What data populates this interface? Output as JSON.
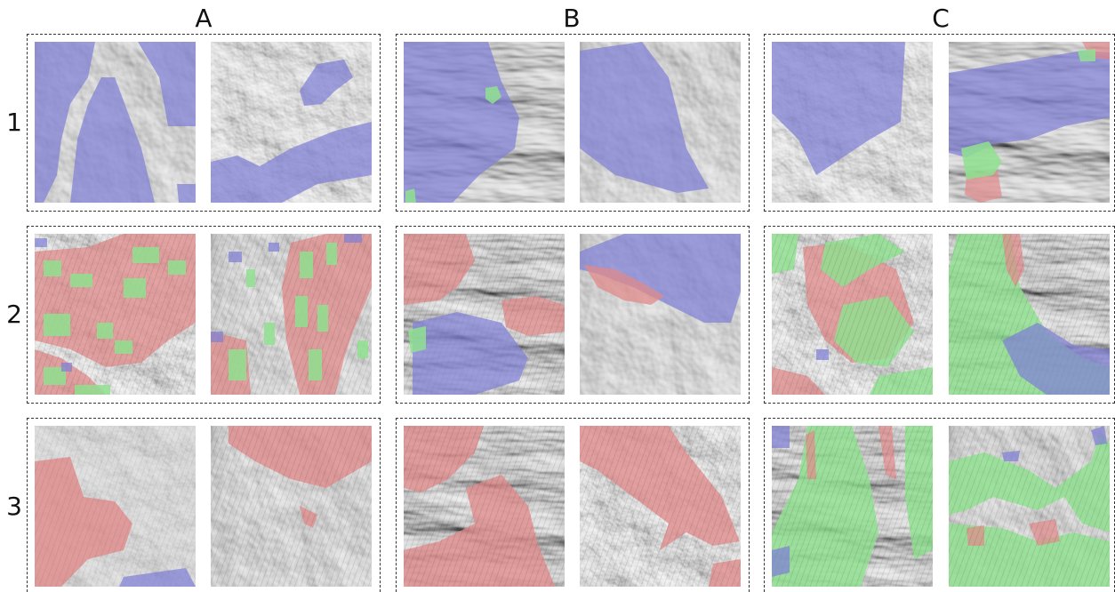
{
  "columns": [
    "A",
    "B",
    "C"
  ],
  "rows": [
    "1",
    "2",
    "3"
  ],
  "overlay_colors": {
    "blue": "#7f7fd6",
    "red": "#e08a8a",
    "green": "#8fe08f"
  }
}
